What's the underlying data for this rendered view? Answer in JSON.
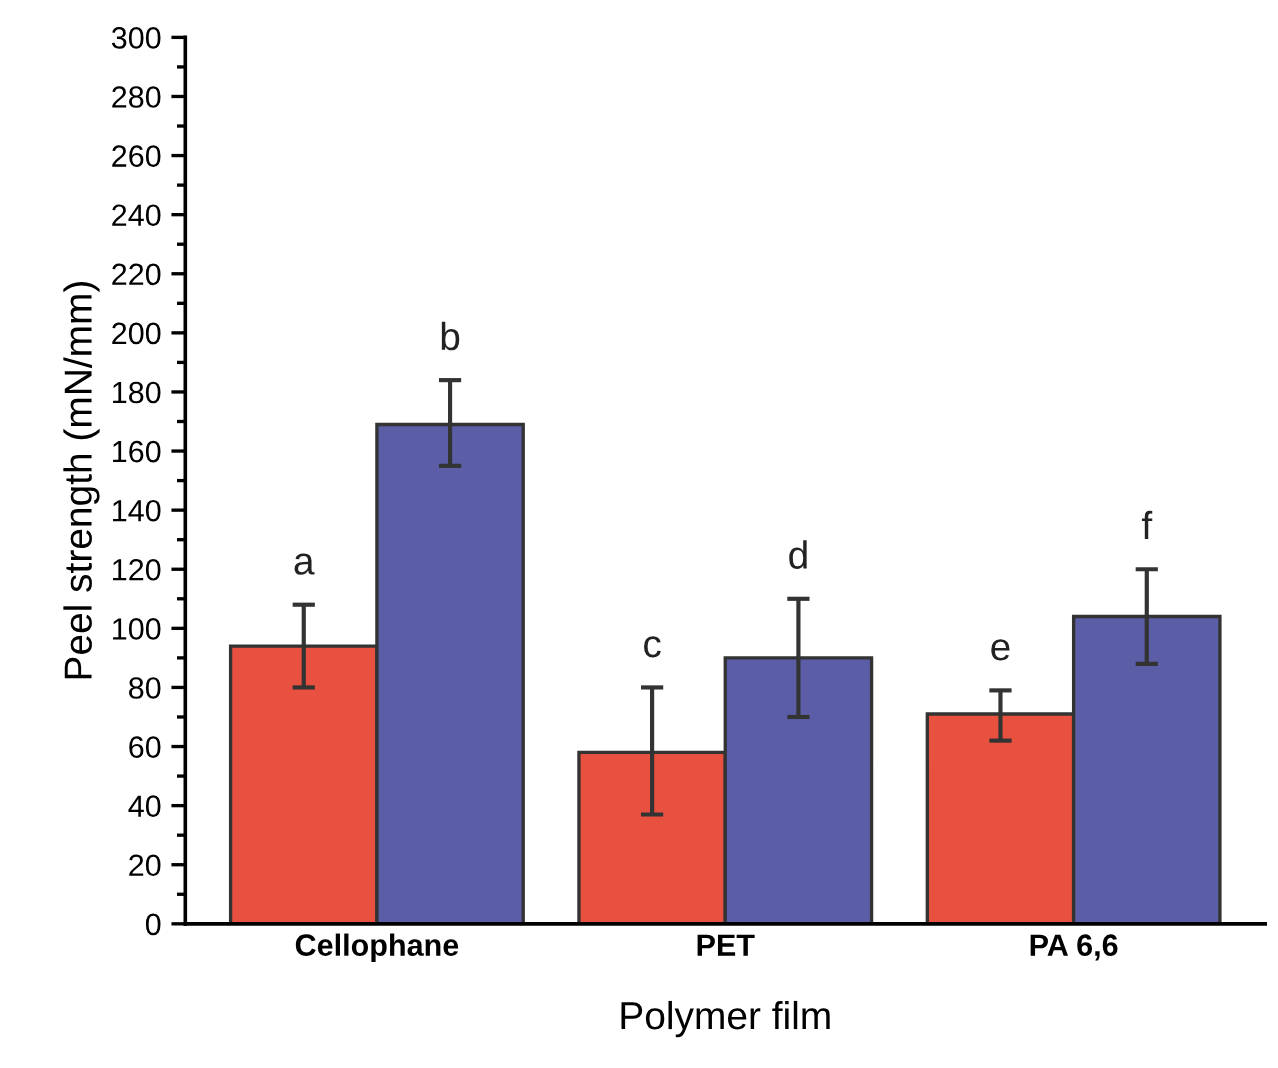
{
  "chart_data": {
    "type": "bar",
    "xlabel": "Polymer film",
    "ylabel": "Peel strength (mN/mm)",
    "categories": [
      "Cellophane",
      "PET",
      "PA 6,6"
    ],
    "series": [
      {
        "color": "#e8503f",
        "values": [
          94,
          58,
          71
        ],
        "errors": [
          [
            80,
            108
          ],
          [
            37,
            80
          ],
          [
            62,
            79
          ]
        ]
      },
      {
        "color": "#5b5ea6",
        "values": [
          169,
          90,
          104
        ],
        "errors": [
          [
            155,
            184
          ],
          [
            70,
            110
          ],
          [
            88,
            120
          ]
        ]
      }
    ],
    "ylim": [
      0,
      300
    ],
    "yticks": [
      0,
      20,
      40,
      60,
      80,
      100,
      120,
      140,
      160,
      180,
      200,
      220,
      240,
      260,
      280,
      300
    ],
    "annotations": [
      "a",
      "b",
      "c",
      "d",
      "e",
      "f"
    ],
    "grid": false,
    "legend": false
  }
}
